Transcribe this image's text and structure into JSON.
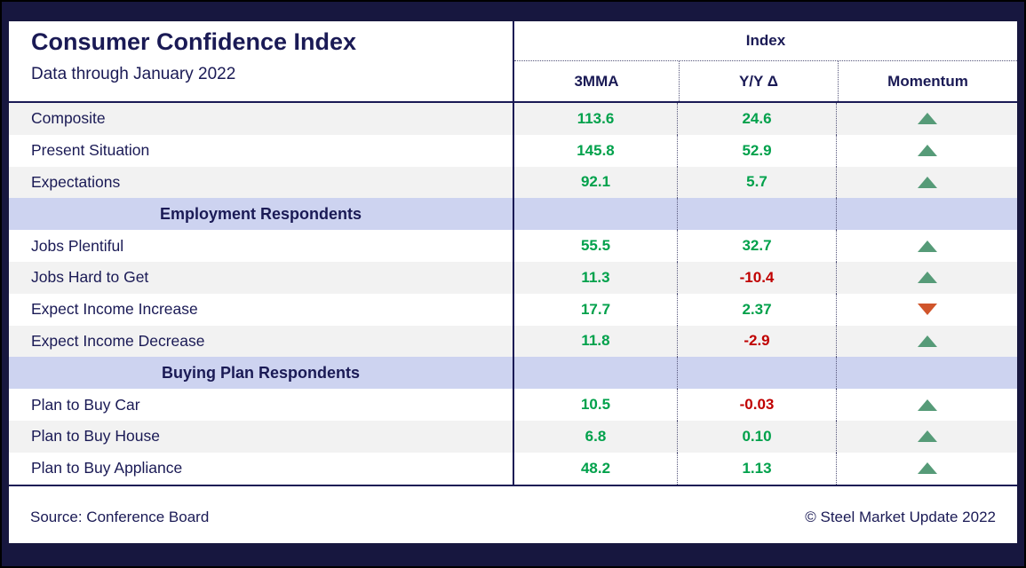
{
  "title": "Consumer Confidence Index",
  "subtitle": "Data through January 2022",
  "header": {
    "group": "Index",
    "col_mma": "3MMA",
    "col_yoy": "Y/Y Δ",
    "col_momentum": "Momentum"
  },
  "rows": [
    {
      "type": "data",
      "label": "Composite",
      "mma": "113.6",
      "yoy": "24.6",
      "yoy_sign": "pos",
      "momentum": "up"
    },
    {
      "type": "data",
      "label": "Present Situation",
      "mma": "145.8",
      "yoy": "52.9",
      "yoy_sign": "pos",
      "momentum": "up"
    },
    {
      "type": "data",
      "label": "Expectations",
      "mma": "92.1",
      "yoy": "5.7",
      "yoy_sign": "pos",
      "momentum": "up"
    },
    {
      "type": "section",
      "label": "Employment Respondents"
    },
    {
      "type": "data",
      "label": "Jobs Plentiful",
      "mma": "55.5",
      "yoy": "32.7",
      "yoy_sign": "pos",
      "momentum": "up"
    },
    {
      "type": "data",
      "label": "Jobs Hard to Get",
      "mma": "11.3",
      "yoy": "-10.4",
      "yoy_sign": "neg",
      "momentum": "up"
    },
    {
      "type": "data",
      "label": "Expect Income Increase",
      "mma": "17.7",
      "yoy": "2.37",
      "yoy_sign": "pos",
      "momentum": "down"
    },
    {
      "type": "data",
      "label": "Expect Income Decrease",
      "mma": "11.8",
      "yoy": "-2.9",
      "yoy_sign": "neg",
      "momentum": "up"
    },
    {
      "type": "section",
      "label": "Buying Plan Respondents"
    },
    {
      "type": "data",
      "label": "Plan to Buy Car",
      "mma": "10.5",
      "yoy": "-0.03",
      "yoy_sign": "neg",
      "momentum": "up"
    },
    {
      "type": "data",
      "label": "Plan to Buy House",
      "mma": "6.8",
      "yoy": "0.10",
      "yoy_sign": "pos",
      "momentum": "up"
    },
    {
      "type": "data",
      "label": "Plan to Buy Appliance",
      "mma": "48.2",
      "yoy": "1.13",
      "yoy_sign": "pos",
      "momentum": "up"
    }
  ],
  "footer": {
    "source": "Source: Conference Board",
    "copyright": "© Steel Market Update 2022"
  },
  "colors": {
    "positive_value": "#00a14b",
    "negative_value": "#c00000",
    "arrow_up": "#569b78",
    "arrow_down": "#d0552b",
    "section_band": "#cdd3f0",
    "frame_navy": "#17173f",
    "text_navy": "#1a1a55"
  },
  "chart_data": {
    "type": "table",
    "title": "Consumer Confidence Index",
    "subtitle": "Data through January 2022",
    "column_group": "Index",
    "columns": [
      "3MMA",
      "Y/Y Δ",
      "Momentum"
    ],
    "rows": [
      {
        "label": "Composite",
        "mma_3": 113.6,
        "yoy_delta": 24.6,
        "momentum": "up"
      },
      {
        "label": "Present Situation",
        "mma_3": 145.8,
        "yoy_delta": 52.9,
        "momentum": "up"
      },
      {
        "label": "Expectations",
        "mma_3": 92.1,
        "yoy_delta": 5.7,
        "momentum": "up"
      },
      {
        "section": "Employment Respondents"
      },
      {
        "label": "Jobs Plentiful",
        "mma_3": 55.5,
        "yoy_delta": 32.7,
        "momentum": "up"
      },
      {
        "label": "Jobs Hard to Get",
        "mma_3": 11.3,
        "yoy_delta": -10.4,
        "momentum": "up"
      },
      {
        "label": "Expect Income Increase",
        "mma_3": 17.7,
        "yoy_delta": 2.37,
        "momentum": "down"
      },
      {
        "label": "Expect Income Decrease",
        "mma_3": 11.8,
        "yoy_delta": -2.9,
        "momentum": "up"
      },
      {
        "section": "Buying Plan Respondents"
      },
      {
        "label": "Plan to Buy Car",
        "mma_3": 10.5,
        "yoy_delta": -0.03,
        "momentum": "up"
      },
      {
        "label": "Plan to Buy House",
        "mma_3": 6.8,
        "yoy_delta": 0.1,
        "momentum": "up"
      },
      {
        "label": "Plan to Buy Appliance",
        "mma_3": 48.2,
        "yoy_delta": 1.13,
        "momentum": "up"
      }
    ],
    "source": "Conference Board",
    "legend_position": "none",
    "grid": "dotted-column-separators"
  }
}
